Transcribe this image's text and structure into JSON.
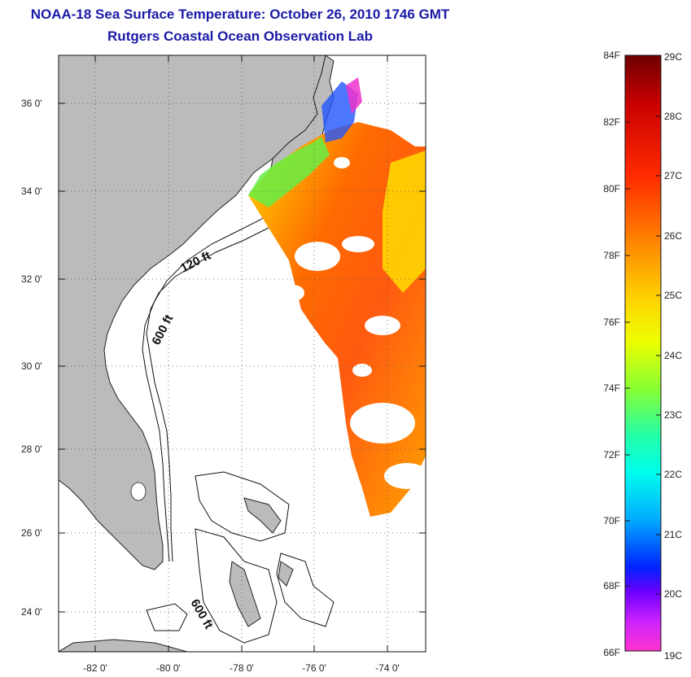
{
  "header": {
    "title": "NOAA-18 Sea Surface Temperature:  October 26, 2010 1746 GMT",
    "subtitle": "Rutgers Coastal Ocean Observation Lab"
  },
  "map": {
    "lat_ticks": [
      "36 0'",
      "34 0'",
      "32 0'",
      "30 0'",
      "28 0'",
      "26 0'",
      "24 0'"
    ],
    "lon_ticks": [
      "-82 0'",
      "-80 0'",
      "-78 0'",
      "-76 0'",
      "-74 0'"
    ],
    "lat_range": [
      23,
      37
    ],
    "lon_range": [
      -83,
      -73
    ],
    "contour_labels": [
      "120 ft",
      "600 ft",
      "600 ft"
    ],
    "land_color": "#bbbbbb"
  },
  "colorbar": {
    "fahrenheit_labels": [
      "84F",
      "82F",
      "80F",
      "78F",
      "76F",
      "74F",
      "72F",
      "70F",
      "68F",
      "66F"
    ],
    "celsius_labels": [
      "29C",
      "28C",
      "27C",
      "26C",
      "25C",
      "24C",
      "23C",
      "22C",
      "21C",
      "20C",
      "19C"
    ],
    "colors": [
      "#7a0000",
      "#d00000",
      "#ff2a00",
      "#ff6a00",
      "#ffb000",
      "#ffee00",
      "#ccff33",
      "#55ff55",
      "#00ffcc",
      "#00ccff",
      "#0066ff",
      "#0000ff",
      "#8800ff",
      "#ff44dd",
      "#ff33cc"
    ]
  }
}
